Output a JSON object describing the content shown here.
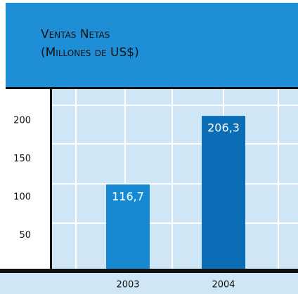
{
  "chart_data": {
    "type": "bar",
    "title": "Ventas Netas",
    "subtitle": "(Millones de US$)",
    "categories": [
      "2003",
      "2004"
    ],
    "values": [
      116.7,
      206.3
    ],
    "value_labels": [
      "116,7",
      "206,3"
    ],
    "colors": [
      "#1789d2",
      "#0a6db6"
    ],
    "ylim": [
      0,
      240
    ],
    "yticks": [
      50,
      100,
      150,
      200
    ]
  }
}
